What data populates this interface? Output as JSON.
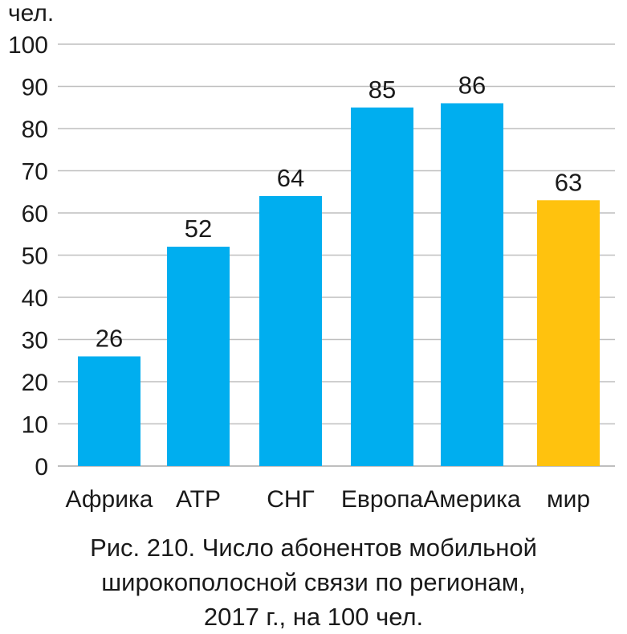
{
  "chart_data": {
    "type": "bar",
    "ylabel": "чел.",
    "ylim": [
      0,
      100
    ],
    "ytick_step": 10,
    "grid": true,
    "categories": [
      "Африка",
      "АТР",
      "СНГ",
      "Европа",
      "Америка",
      "мир"
    ],
    "values": [
      26,
      52,
      64,
      85,
      86,
      63
    ],
    "bar_colors": [
      "#00aeef",
      "#00aeef",
      "#00aeef",
      "#00aeef",
      "#00aeef",
      "#ffc20e"
    ],
    "grid_color": "#bfbfbf"
  },
  "caption": {
    "line1": "Рис. 210. Число абонентов мобильной",
    "line2": "широкополосной связи по регионам,",
    "line3": "2017 г., на 100 чел."
  }
}
